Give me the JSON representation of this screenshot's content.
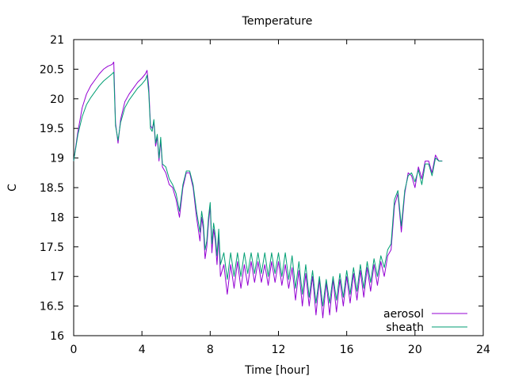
{
  "chart_data": {
    "type": "line",
    "title": "Temperature",
    "xlabel": "Time [hour]",
    "ylabel": "C",
    "xlim": [
      0,
      24
    ],
    "ylim": [
      16,
      21
    ],
    "xticks": [
      0,
      4,
      8,
      12,
      16,
      20,
      24
    ],
    "yticks": [
      16,
      16.5,
      17,
      17.5,
      18,
      18.5,
      19,
      19.5,
      20,
      20.5,
      21
    ],
    "ytick_labels": [
      "16",
      "16.5",
      "17",
      "17.5",
      "18",
      "18.5",
      "19",
      "19.5",
      "20",
      "20.5",
      "21"
    ],
    "grid": false,
    "legend": "bottom-right",
    "series": [
      {
        "name": "aerosol",
        "color": "#9400d3",
        "points": [
          [
            0.0,
            18.95
          ],
          [
            0.25,
            19.45
          ],
          [
            0.5,
            19.85
          ],
          [
            0.75,
            20.08
          ],
          [
            1.0,
            20.22
          ],
          [
            1.25,
            20.32
          ],
          [
            1.5,
            20.42
          ],
          [
            1.75,
            20.5
          ],
          [
            2.0,
            20.55
          ],
          [
            2.25,
            20.58
          ],
          [
            2.35,
            20.62
          ],
          [
            2.45,
            19.6
          ],
          [
            2.6,
            19.25
          ],
          [
            2.75,
            19.65
          ],
          [
            3.0,
            19.95
          ],
          [
            3.25,
            20.08
          ],
          [
            3.5,
            20.18
          ],
          [
            3.75,
            20.28
          ],
          [
            4.0,
            20.35
          ],
          [
            4.2,
            20.42
          ],
          [
            4.3,
            20.48
          ],
          [
            4.4,
            20.2
          ],
          [
            4.5,
            19.55
          ],
          [
            4.6,
            19.5
          ],
          [
            4.7,
            19.6
          ],
          [
            4.8,
            19.2
          ],
          [
            4.9,
            19.35
          ],
          [
            5.0,
            18.95
          ],
          [
            5.1,
            19.3
          ],
          [
            5.2,
            18.85
          ],
          [
            5.4,
            18.75
          ],
          [
            5.6,
            18.55
          ],
          [
            5.8,
            18.5
          ],
          [
            6.0,
            18.3
          ],
          [
            6.2,
            18.0
          ],
          [
            6.4,
            18.5
          ],
          [
            6.6,
            18.75
          ],
          [
            6.8,
            18.75
          ],
          [
            7.0,
            18.5
          ],
          [
            7.2,
            18.0
          ],
          [
            7.4,
            17.6
          ],
          [
            7.5,
            18.0
          ],
          [
            7.6,
            17.8
          ],
          [
            7.7,
            17.3
          ],
          [
            7.8,
            17.5
          ],
          [
            7.9,
            17.9
          ],
          [
            8.0,
            18.2
          ],
          [
            8.1,
            17.4
          ],
          [
            8.2,
            17.8
          ],
          [
            8.3,
            17.6
          ],
          [
            8.4,
            17.2
          ],
          [
            8.5,
            17.7
          ],
          [
            8.6,
            17.0
          ],
          [
            8.8,
            17.2
          ],
          [
            9.0,
            16.7
          ],
          [
            9.2,
            17.2
          ],
          [
            9.4,
            16.8
          ],
          [
            9.6,
            17.25
          ],
          [
            9.8,
            16.8
          ],
          [
            10.0,
            17.2
          ],
          [
            10.2,
            16.85
          ],
          [
            10.4,
            17.25
          ],
          [
            10.6,
            16.9
          ],
          [
            10.8,
            17.25
          ],
          [
            11.0,
            16.9
          ],
          [
            11.2,
            17.2
          ],
          [
            11.4,
            16.85
          ],
          [
            11.6,
            17.25
          ],
          [
            11.8,
            16.9
          ],
          [
            12.0,
            17.25
          ],
          [
            12.2,
            16.85
          ],
          [
            12.4,
            17.2
          ],
          [
            12.6,
            16.8
          ],
          [
            12.8,
            17.15
          ],
          [
            13.0,
            16.6
          ],
          [
            13.2,
            17.1
          ],
          [
            13.4,
            16.5
          ],
          [
            13.6,
            17.05
          ],
          [
            13.8,
            16.5
          ],
          [
            14.0,
            17.0
          ],
          [
            14.2,
            16.35
          ],
          [
            14.4,
            16.95
          ],
          [
            14.6,
            16.3
          ],
          [
            14.8,
            16.9
          ],
          [
            15.0,
            16.35
          ],
          [
            15.2,
            16.95
          ],
          [
            15.4,
            16.4
          ],
          [
            15.6,
            16.95
          ],
          [
            15.8,
            16.5
          ],
          [
            16.0,
            17.0
          ],
          [
            16.2,
            16.55
          ],
          [
            16.4,
            17.05
          ],
          [
            16.6,
            16.6
          ],
          [
            16.8,
            17.1
          ],
          [
            17.0,
            16.65
          ],
          [
            17.2,
            17.15
          ],
          [
            17.4,
            16.75
          ],
          [
            17.6,
            17.2
          ],
          [
            17.8,
            16.85
          ],
          [
            18.0,
            17.25
          ],
          [
            18.2,
            17.0
          ],
          [
            18.4,
            17.35
          ],
          [
            18.6,
            17.45
          ],
          [
            18.8,
            18.2
          ],
          [
            19.0,
            18.4
          ],
          [
            19.2,
            17.75
          ],
          [
            19.4,
            18.4
          ],
          [
            19.6,
            18.75
          ],
          [
            19.8,
            18.7
          ],
          [
            20.0,
            18.5
          ],
          [
            20.2,
            18.85
          ],
          [
            20.4,
            18.65
          ],
          [
            20.6,
            18.95
          ],
          [
            20.8,
            18.95
          ],
          [
            21.0,
            18.75
          ],
          [
            21.2,
            19.05
          ],
          [
            21.4,
            18.95
          ],
          [
            21.6,
            18.95
          ]
        ]
      },
      {
        "name": "sheath",
        "color": "#009e73",
        "points": [
          [
            0.0,
            18.95
          ],
          [
            0.25,
            19.4
          ],
          [
            0.5,
            19.7
          ],
          [
            0.75,
            19.9
          ],
          [
            1.0,
            20.02
          ],
          [
            1.25,
            20.12
          ],
          [
            1.5,
            20.22
          ],
          [
            1.75,
            20.3
          ],
          [
            2.0,
            20.36
          ],
          [
            2.25,
            20.42
          ],
          [
            2.35,
            20.45
          ],
          [
            2.45,
            19.55
          ],
          [
            2.6,
            19.3
          ],
          [
            2.75,
            19.6
          ],
          [
            3.0,
            19.85
          ],
          [
            3.25,
            19.98
          ],
          [
            3.5,
            20.08
          ],
          [
            3.75,
            20.18
          ],
          [
            4.0,
            20.25
          ],
          [
            4.2,
            20.32
          ],
          [
            4.3,
            20.4
          ],
          [
            4.4,
            20.1
          ],
          [
            4.5,
            19.5
          ],
          [
            4.6,
            19.45
          ],
          [
            4.7,
            19.65
          ],
          [
            4.8,
            19.25
          ],
          [
            4.9,
            19.4
          ],
          [
            5.0,
            19.0
          ],
          [
            5.1,
            19.35
          ],
          [
            5.2,
            18.9
          ],
          [
            5.4,
            18.85
          ],
          [
            5.6,
            18.65
          ],
          [
            5.8,
            18.55
          ],
          [
            6.0,
            18.4
          ],
          [
            6.2,
            18.1
          ],
          [
            6.4,
            18.55
          ],
          [
            6.6,
            18.78
          ],
          [
            6.8,
            18.78
          ],
          [
            7.0,
            18.55
          ],
          [
            7.2,
            18.1
          ],
          [
            7.4,
            17.75
          ],
          [
            7.5,
            18.1
          ],
          [
            7.6,
            17.9
          ],
          [
            7.7,
            17.45
          ],
          [
            7.8,
            17.6
          ],
          [
            7.9,
            18.0
          ],
          [
            8.0,
            18.25
          ],
          [
            8.1,
            17.55
          ],
          [
            8.2,
            17.9
          ],
          [
            8.3,
            17.7
          ],
          [
            8.4,
            17.35
          ],
          [
            8.5,
            17.8
          ],
          [
            8.6,
            17.2
          ],
          [
            8.8,
            17.4
          ],
          [
            9.0,
            16.95
          ],
          [
            9.2,
            17.4
          ],
          [
            9.4,
            17.0
          ],
          [
            9.6,
            17.4
          ],
          [
            9.8,
            17.0
          ],
          [
            10.0,
            17.4
          ],
          [
            10.2,
            17.05
          ],
          [
            10.4,
            17.4
          ],
          [
            10.6,
            17.05
          ],
          [
            10.8,
            17.4
          ],
          [
            11.0,
            17.05
          ],
          [
            11.2,
            17.4
          ],
          [
            11.4,
            17.0
          ],
          [
            11.6,
            17.4
          ],
          [
            11.8,
            17.05
          ],
          [
            12.0,
            17.4
          ],
          [
            12.2,
            17.0
          ],
          [
            12.4,
            17.4
          ],
          [
            12.6,
            16.95
          ],
          [
            12.8,
            17.35
          ],
          [
            13.0,
            16.8
          ],
          [
            13.2,
            17.25
          ],
          [
            13.4,
            16.7
          ],
          [
            13.6,
            17.2
          ],
          [
            13.8,
            16.65
          ],
          [
            14.0,
            17.1
          ],
          [
            14.2,
            16.55
          ],
          [
            14.4,
            17.0
          ],
          [
            14.6,
            16.5
          ],
          [
            14.8,
            16.95
          ],
          [
            15.0,
            16.55
          ],
          [
            15.2,
            17.0
          ],
          [
            15.4,
            16.6
          ],
          [
            15.6,
            17.05
          ],
          [
            15.8,
            16.65
          ],
          [
            16.0,
            17.1
          ],
          [
            16.2,
            16.7
          ],
          [
            16.4,
            17.15
          ],
          [
            16.6,
            16.75
          ],
          [
            16.8,
            17.2
          ],
          [
            17.0,
            16.8
          ],
          [
            17.2,
            17.25
          ],
          [
            17.4,
            16.9
          ],
          [
            17.6,
            17.3
          ],
          [
            17.8,
            17.0
          ],
          [
            18.0,
            17.35
          ],
          [
            18.2,
            17.15
          ],
          [
            18.4,
            17.45
          ],
          [
            18.6,
            17.55
          ],
          [
            18.8,
            18.3
          ],
          [
            19.0,
            18.45
          ],
          [
            19.2,
            17.85
          ],
          [
            19.4,
            18.45
          ],
          [
            19.6,
            18.7
          ],
          [
            19.8,
            18.75
          ],
          [
            20.0,
            18.6
          ],
          [
            20.2,
            18.8
          ],
          [
            20.4,
            18.55
          ],
          [
            20.6,
            18.9
          ],
          [
            20.8,
            18.9
          ],
          [
            21.0,
            18.7
          ],
          [
            21.2,
            19.0
          ],
          [
            21.4,
            18.95
          ],
          [
            21.6,
            18.95
          ]
        ]
      }
    ]
  }
}
